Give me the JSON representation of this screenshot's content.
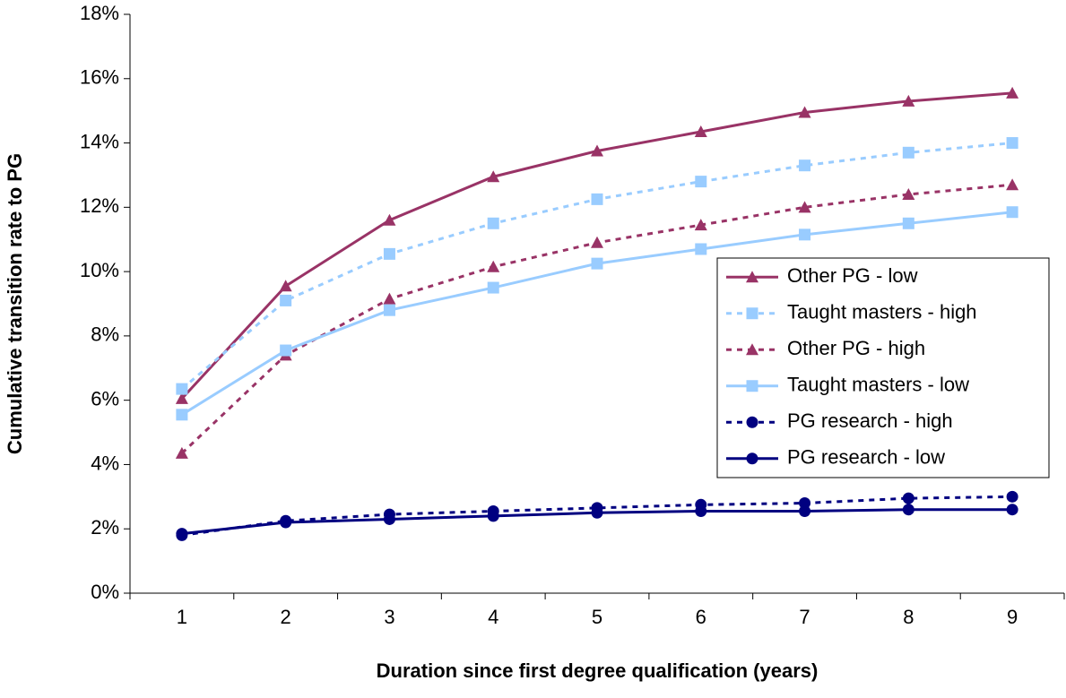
{
  "chart_data": {
    "type": "line",
    "x_label": "Duration since first degree qualification (years)",
    "y_label": "Cumulative transition rate to PG",
    "categories": [
      "1",
      "2",
      "3",
      "4",
      "5",
      "6",
      "7",
      "8",
      "9"
    ],
    "ylim": [
      0,
      18
    ],
    "yticks": [
      {
        "value": 0,
        "label": "0%"
      },
      {
        "value": 2,
        "label": "2%"
      },
      {
        "value": 4,
        "label": "4%"
      },
      {
        "value": 6,
        "label": "6%"
      },
      {
        "value": 8,
        "label": "8%"
      },
      {
        "value": 10,
        "label": "10%"
      },
      {
        "value": 12,
        "label": "12%"
      },
      {
        "value": 14,
        "label": "14%"
      },
      {
        "value": 16,
        "label": "16%"
      },
      {
        "value": 18,
        "label": "18%"
      }
    ],
    "legend": "right",
    "series": [
      {
        "name": "Other PG - low",
        "color": "#993366",
        "marker": "triangle",
        "dashed": false,
        "values": [
          6.05,
          9.55,
          11.6,
          12.95,
          13.75,
          14.35,
          14.95,
          15.3,
          15.55
        ]
      },
      {
        "name": "Taught masters - high",
        "color": "#99ccff",
        "marker": "square",
        "dashed": true,
        "values": [
          6.35,
          9.1,
          10.55,
          11.5,
          12.25,
          12.8,
          13.3,
          13.7,
          14.0
        ]
      },
      {
        "name": "Other PG - high",
        "color": "#993366",
        "marker": "triangle",
        "dashed": true,
        "values": [
          4.35,
          7.4,
          9.15,
          10.15,
          10.9,
          11.45,
          12.0,
          12.4,
          12.7
        ]
      },
      {
        "name": "Taught masters - low",
        "color": "#99ccff",
        "marker": "square",
        "dashed": false,
        "values": [
          5.55,
          7.55,
          8.8,
          9.5,
          10.25,
          10.7,
          11.15,
          11.5,
          11.85
        ]
      },
      {
        "name": "PG research - high",
        "color": "#000080",
        "marker": "circle",
        "dashed": true,
        "values": [
          1.8,
          2.25,
          2.45,
          2.55,
          2.65,
          2.75,
          2.8,
          2.95,
          3.0
        ]
      },
      {
        "name": "PG research - low",
        "color": "#000080",
        "marker": "circle",
        "dashed": false,
        "values": [
          1.85,
          2.2,
          2.3,
          2.4,
          2.5,
          2.55,
          2.55,
          2.6,
          2.6
        ]
      }
    ]
  }
}
